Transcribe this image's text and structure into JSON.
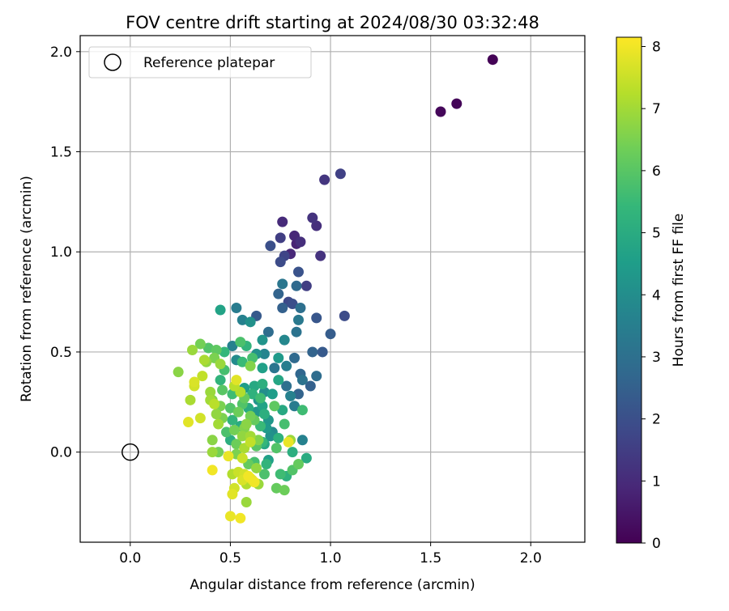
{
  "chart_data": {
    "type": "scatter",
    "title": "FOV centre drift starting at 2024/08/30 03:32:48",
    "xlabel": "Angular distance from reference (arcmin)",
    "ylabel": "Rotation from reference (arcmin)",
    "xlim": [
      -0.25,
      2.27
    ],
    "ylim": [
      -0.45,
      2.08
    ],
    "xticks": [
      0.0,
      0.5,
      1.0,
      1.5,
      2.0
    ],
    "xtick_labels": [
      "0.0",
      "0.5",
      "1.0",
      "1.5",
      "2.0"
    ],
    "yticks": [
      0.0,
      0.5,
      1.0,
      1.5,
      2.0
    ],
    "ytick_labels": [
      "0.0",
      "0.5",
      "1.0",
      "1.5",
      "2.0"
    ],
    "grid": true,
    "legend": {
      "position": "top-left",
      "entries": [
        {
          "label": "Reference platepar",
          "marker": "open-circle"
        }
      ]
    },
    "reference_point": {
      "x": 0.0,
      "y": 0.0
    },
    "colorbar": {
      "label": "Hours from first FF file",
      "range": [
        0,
        8.15
      ],
      "ticks": [
        0,
        1,
        2,
        3,
        4,
        5,
        6,
        7,
        8
      ],
      "tick_labels": [
        "0",
        "1",
        "2",
        "3",
        "4",
        "5",
        "6",
        "7",
        "8"
      ],
      "colormap": "viridis"
    },
    "colormap_stops": [
      "#440154",
      "#482878",
      "#3e4989",
      "#31688e",
      "#26828e",
      "#1f9e89",
      "#35b779",
      "#6ece58",
      "#b5de2b",
      "#fde725"
    ],
    "points": [
      [
        1.81,
        1.96,
        0.05
      ],
      [
        1.63,
        1.74,
        0.1
      ],
      [
        1.55,
        1.7,
        0.15
      ],
      [
        1.05,
        1.39,
        1.6
      ],
      [
        0.97,
        1.36,
        1.3
      ],
      [
        0.76,
        1.15,
        1.0
      ],
      [
        0.91,
        1.17,
        1.2
      ],
      [
        0.93,
        1.13,
        1.1
      ],
      [
        0.82,
        1.08,
        0.9
      ],
      [
        0.75,
        1.07,
        1.5
      ],
      [
        0.85,
        1.05,
        1.1
      ],
      [
        0.83,
        1.04,
        0.8
      ],
      [
        0.7,
        1.03,
        2.0
      ],
      [
        0.8,
        0.99,
        0.9
      ],
      [
        0.77,
        0.98,
        1.7
      ],
      [
        0.75,
        0.95,
        1.9
      ],
      [
        0.95,
        0.98,
        1.2
      ],
      [
        0.84,
        0.9,
        2.1
      ],
      [
        0.76,
        0.84,
        3.2
      ],
      [
        0.83,
        0.83,
        2.8
      ],
      [
        0.88,
        0.83,
        1.5
      ],
      [
        0.74,
        0.79,
        2.6
      ],
      [
        0.79,
        0.75,
        1.8
      ],
      [
        0.81,
        0.74,
        2.0
      ],
      [
        0.76,
        0.72,
        2.5
      ],
      [
        0.85,
        0.72,
        3.0
      ],
      [
        0.93,
        0.67,
        2.2
      ],
      [
        1.07,
        0.68,
        1.9
      ],
      [
        0.63,
        0.68,
        2.3
      ],
      [
        0.45,
        0.71,
        4.7
      ],
      [
        0.53,
        0.72,
        3.4
      ],
      [
        0.56,
        0.66,
        3.6
      ],
      [
        0.6,
        0.65,
        4.1
      ],
      [
        0.84,
        0.66,
        3.3
      ],
      [
        1.0,
        0.59,
        2.4
      ],
      [
        0.83,
        0.6,
        3.1
      ],
      [
        0.69,
        0.6,
        2.9
      ],
      [
        0.66,
        0.56,
        4.2
      ],
      [
        0.77,
        0.56,
        3.8
      ],
      [
        0.55,
        0.55,
        5.8
      ],
      [
        0.35,
        0.54,
        6.4
      ],
      [
        0.39,
        0.52,
        5.9
      ],
      [
        0.31,
        0.51,
        6.9
      ],
      [
        0.43,
        0.51,
        6.1
      ],
      [
        0.47,
        0.5,
        5.4
      ],
      [
        0.51,
        0.53,
        3.6
      ],
      [
        0.58,
        0.53,
        5.3
      ],
      [
        0.63,
        0.49,
        4.1
      ],
      [
        0.67,
        0.49,
        3.7
      ],
      [
        0.74,
        0.47,
        4.4
      ],
      [
        0.82,
        0.47,
        2.8
      ],
      [
        0.91,
        0.5,
        2.6
      ],
      [
        0.96,
        0.5,
        2.3
      ],
      [
        0.53,
        0.46,
        3.9
      ],
      [
        0.56,
        0.45,
        5.5
      ],
      [
        0.6,
        0.43,
        6.6
      ],
      [
        0.38,
        0.45,
        6.8
      ],
      [
        0.42,
        0.47,
        6.5
      ],
      [
        0.45,
        0.44,
        6.9
      ],
      [
        0.47,
        0.41,
        5.7
      ],
      [
        0.66,
        0.42,
        4.6
      ],
      [
        0.72,
        0.42,
        3.2
      ],
      [
        0.78,
        0.43,
        3.5
      ],
      [
        0.85,
        0.39,
        2.7
      ],
      [
        0.93,
        0.38,
        2.9
      ],
      [
        0.36,
        0.38,
        7.4
      ],
      [
        0.32,
        0.35,
        7.7
      ],
      [
        0.45,
        0.36,
        5.3
      ],
      [
        0.53,
        0.36,
        7.8
      ],
      [
        0.52,
        0.33,
        7.3
      ],
      [
        0.62,
        0.33,
        4.9
      ],
      [
        0.66,
        0.34,
        5.1
      ],
      [
        0.74,
        0.36,
        4.8
      ],
      [
        0.78,
        0.33,
        3.0
      ],
      [
        0.86,
        0.36,
        3.1
      ],
      [
        0.9,
        0.33,
        2.5
      ],
      [
        0.32,
        0.33,
        7.6
      ],
      [
        0.4,
        0.3,
        6.9
      ],
      [
        0.46,
        0.31,
        6.0
      ],
      [
        0.51,
        0.29,
        5.6
      ],
      [
        0.55,
        0.3,
        7.2
      ],
      [
        0.57,
        0.27,
        6.2
      ],
      [
        0.61,
        0.29,
        5.2
      ],
      [
        0.64,
        0.26,
        4.2
      ],
      [
        0.67,
        0.3,
        4.0
      ],
      [
        0.71,
        0.29,
        4.5
      ],
      [
        0.8,
        0.28,
        3.6
      ],
      [
        0.84,
        0.29,
        2.6
      ],
      [
        0.3,
        0.26,
        7.1
      ],
      [
        0.4,
        0.26,
        7.0
      ],
      [
        0.42,
        0.24,
        7.3
      ],
      [
        0.5,
        0.22,
        5.9
      ],
      [
        0.54,
        0.2,
        6.3
      ],
      [
        0.59,
        0.22,
        5.0
      ],
      [
        0.63,
        0.2,
        4.3
      ],
      [
        0.66,
        0.23,
        4.7
      ],
      [
        0.72,
        0.23,
        6.1
      ],
      [
        0.76,
        0.21,
        4.9
      ],
      [
        0.82,
        0.23,
        3.4
      ],
      [
        0.86,
        0.21,
        5.6
      ],
      [
        0.43,
        0.19,
        6.8
      ],
      [
        0.46,
        0.17,
        6.5
      ],
      [
        0.51,
        0.16,
        5.3
      ],
      [
        0.55,
        0.13,
        5.0
      ],
      [
        0.58,
        0.14,
        6.7
      ],
      [
        0.62,
        0.16,
        6.2
      ],
      [
        0.65,
        0.13,
        5.5
      ],
      [
        0.68,
        0.12,
        4.4
      ],
      [
        0.71,
        0.1,
        3.9
      ],
      [
        0.77,
        0.14,
        5.7
      ],
      [
        0.29,
        0.15,
        7.8
      ],
      [
        0.35,
        0.17,
        7.6
      ],
      [
        0.44,
        0.14,
        7.0
      ],
      [
        0.48,
        0.1,
        5.8
      ],
      [
        0.52,
        0.11,
        6.4
      ],
      [
        0.56,
        0.08,
        6.8
      ],
      [
        0.6,
        0.08,
        7.0
      ],
      [
        0.64,
        0.06,
        6.6
      ],
      [
        0.67,
        0.04,
        4.8
      ],
      [
        0.7,
        0.08,
        4.1
      ],
      [
        0.74,
        0.07,
        5.2
      ],
      [
        0.8,
        0.06,
        6.9
      ],
      [
        0.86,
        0.06,
        3.6
      ],
      [
        0.5,
        0.06,
        5.1
      ],
      [
        0.53,
        0.04,
        6.3
      ],
      [
        0.57,
        0.02,
        7.1
      ],
      [
        0.6,
        0.05,
        7.4
      ],
      [
        0.63,
        0.03,
        6.0
      ],
      [
        0.66,
        0.05,
        5.4
      ],
      [
        0.73,
        0.02,
        5.9
      ],
      [
        0.79,
        0.05,
        7.9
      ],
      [
        0.41,
        0.06,
        6.7
      ],
      [
        0.44,
        0.0,
        6.4
      ],
      [
        0.41,
        0.0,
        6.9
      ],
      [
        0.49,
        -0.02,
        7.9
      ],
      [
        0.53,
        -0.01,
        6.5
      ],
      [
        0.56,
        -0.03,
        7.5
      ],
      [
        0.59,
        -0.06,
        6.2
      ],
      [
        0.62,
        -0.05,
        5.7
      ],
      [
        0.68,
        -0.06,
        5.3
      ],
      [
        0.69,
        -0.04,
        4.6
      ],
      [
        0.81,
        0.0,
        5.1
      ],
      [
        0.84,
        -0.06,
        6.2
      ],
      [
        0.88,
        -0.03,
        5.0
      ],
      [
        0.41,
        -0.09,
        8.0
      ],
      [
        0.51,
        -0.11,
        7.2
      ],
      [
        0.54,
        -0.1,
        7.5
      ],
      [
        0.57,
        -0.11,
        7.6
      ],
      [
        0.6,
        -0.13,
        7.9
      ],
      [
        0.63,
        -0.08,
        6.8
      ],
      [
        0.67,
        -0.11,
        5.8
      ],
      [
        0.62,
        -0.15,
        8.0
      ],
      [
        0.58,
        -0.16,
        7.2
      ],
      [
        0.64,
        -0.16,
        6.9
      ],
      [
        0.75,
        -0.11,
        5.6
      ],
      [
        0.81,
        -0.09,
        5.9
      ],
      [
        0.73,
        -0.18,
        6.2
      ],
      [
        0.77,
        -0.19,
        6.3
      ],
      [
        0.52,
        -0.18,
        7.6
      ],
      [
        0.51,
        -0.21,
        7.8
      ],
      [
        0.58,
        -0.25,
        6.9
      ],
      [
        0.5,
        -0.32,
        7.9
      ],
      [
        0.55,
        -0.33,
        8.0
      ],
      [
        0.61,
        -0.14,
        7.7
      ],
      [
        0.56,
        -0.14,
        7.7
      ],
      [
        0.59,
        -0.12,
        8.0
      ],
      [
        0.78,
        -0.12,
        5.2
      ],
      [
        0.57,
        0.12,
        6.6
      ],
      [
        0.6,
        0.18,
        6.4
      ],
      [
        0.65,
        0.27,
        5.6
      ],
      [
        0.57,
        0.32,
        4.5
      ],
      [
        0.61,
        0.47,
        5.7
      ],
      [
        0.24,
        0.4,
        6.7
      ],
      [
        0.37,
        0.46,
        7.1
      ],
      [
        0.41,
        0.26,
        6.6
      ],
      [
        0.67,
        0.19,
        5.1
      ],
      [
        0.69,
        0.16,
        4.3
      ],
      [
        0.56,
        0.24,
        5.9
      ],
      [
        0.45,
        0.23,
        6.5
      ]
    ]
  }
}
